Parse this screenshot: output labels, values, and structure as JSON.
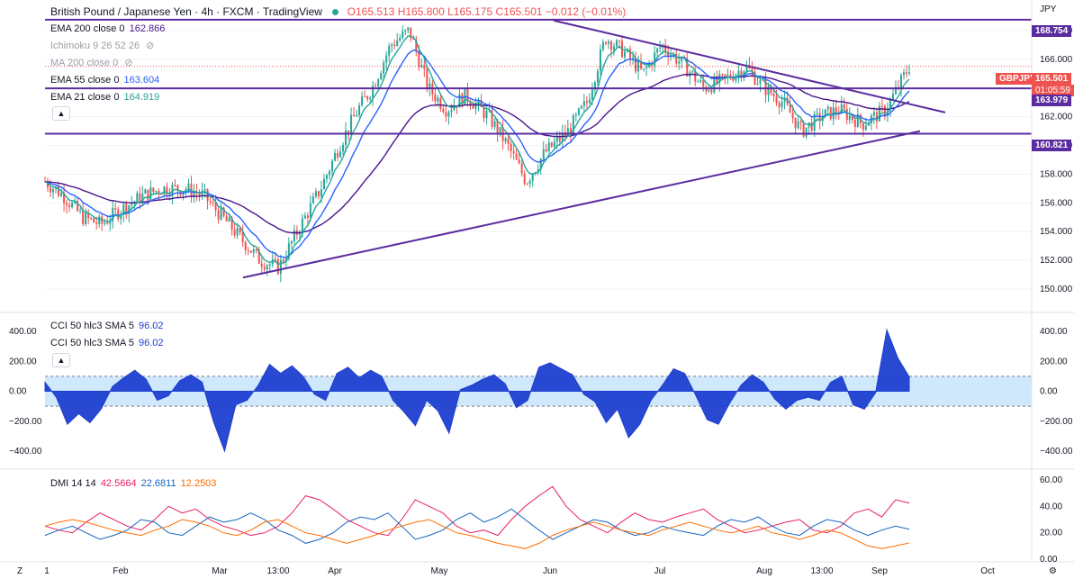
{
  "header": {
    "title": "British Pound / Japanese Yen · 4h · FXCM · TradingView",
    "ohlc": {
      "o": "O165.513",
      "h": "H165.800",
      "l": "L165.175",
      "c": "C165.501",
      "chg": "−0.012 (−0.01%)"
    }
  },
  "currency": "JPY",
  "legend": {
    "ema200": {
      "label": "EMA 200 close 0",
      "value": "162.866"
    },
    "ichimoku": {
      "label": "Ichimoku 9 26 52 26"
    },
    "ma200": {
      "label": "MA 200 close 0"
    },
    "ema55": {
      "label": "EMA 55 close 0",
      "value": "163.604"
    },
    "ema21": {
      "label": "EMA 21 close 0",
      "value": "164.919"
    },
    "cci1": {
      "label": "CCI 50 hlc3 SMA 5",
      "value": "96.02"
    },
    "cci2": {
      "label": "CCI 50 hlc3 SMA 5",
      "value": "96.02"
    },
    "dmi": {
      "label": "DMI 14 14",
      "v1": "42.5664",
      "v2": "22.6811",
      "v3": "12.2503"
    }
  },
  "price_tags": {
    "r1": "168.754",
    "symbol": "GBPJPY",
    "last": "165.501",
    "countdown": "01:05:59",
    "r2": "163.979",
    "r3": "160.821"
  },
  "colors": {
    "up": "#26a69a",
    "down": "#ef5350",
    "line": "#5b2c9f",
    "ema200": "#4a148c",
    "ema55": "#2962ff",
    "ema21": "#26a69a",
    "cci": "#1e3fd0",
    "band": "#cfe8fb",
    "dmi_plus": "#e91e63",
    "dmi_minus": "#1565c0",
    "adx": "#ff6d00"
  },
  "x_axis": [
    "1",
    "Feb",
    "Mar",
    "13:00",
    "Apr",
    "May",
    "Jun",
    "Jul",
    "Aug",
    "13:00",
    "Sep",
    "Oct"
  ],
  "chart_data": [
    {
      "type": "line",
      "title": "GBPJPY 4h",
      "ylim": [
        149,
        169.5
      ],
      "y_ticks": [
        150,
        152,
        154,
        156,
        158,
        160,
        162,
        164,
        166,
        168
      ],
      "close_path": {
        "x": [
          0,
          4,
          8,
          12,
          16,
          21,
          25,
          30,
          34,
          38,
          42,
          46,
          50,
          54,
          59,
          63,
          67,
          70,
          74,
          78,
          82,
          86,
          90,
          95,
          99,
          103,
          107,
          112,
          116,
          120,
          124,
          128,
          132,
          137,
          141,
          145,
          150,
          154,
          158,
          162,
          166,
          170,
          175,
          180,
          185
        ],
        "y": [
          157.5,
          156.5,
          155.0,
          154.5,
          155.5,
          156.5,
          157.0,
          157.0,
          156.5,
          155.0,
          153.5,
          152.0,
          151.5,
          154.0,
          157.0,
          160.0,
          162.5,
          164.0,
          167.0,
          168.0,
          164.0,
          162.5,
          163.5,
          162.0,
          160.0,
          157.5,
          159.5,
          161.0,
          163.0,
          167.5,
          166.5,
          165.0,
          167.0,
          165.5,
          164.0,
          164.5,
          165.5,
          164.0,
          163.0,
          161.0,
          162.0,
          162.5,
          161.5,
          162.5,
          165.5
        ]
      },
      "levels": [
        168.754,
        163.979,
        160.821
      ],
      "trendlines": [
        {
          "from": [
            "May 27",
            168.7
          ],
          "to": [
            "Sep 20",
            162.3
          ]
        },
        {
          "from": [
            "Mar 1",
            150.8
          ],
          "to": [
            "Sep 15",
            161.0
          ]
        }
      ],
      "series": [
        {
          "name": "EMA 200 close 0",
          "last": 162.866
        },
        {
          "name": "EMA 55 close 0",
          "last": 163.604
        },
        {
          "name": "EMA 21 close 0",
          "last": 164.919
        }
      ]
    },
    {
      "type": "area",
      "title": "CCI 50 hlc3 SMA 5",
      "ylim": [
        -470,
        450
      ],
      "y_ticks": [
        -400,
        -200,
        0,
        200,
        400
      ],
      "band": [
        -100,
        100
      ],
      "values": [
        60,
        -40,
        -220,
        -150,
        -210,
        -120,
        30,
        90,
        140,
        80,
        -60,
        -30,
        70,
        110,
        60,
        -200,
        -400,
        -90,
        -60,
        40,
        180,
        120,
        170,
        100,
        -20,
        -60,
        120,
        160,
        90,
        140,
        100,
        -60,
        -140,
        -230,
        -60,
        -130,
        -280,
        10,
        40,
        80,
        110,
        50,
        -110,
        -60,
        160,
        190,
        150,
        110,
        -20,
        -70,
        -210,
        -120,
        -310,
        -220,
        -60,
        40,
        150,
        120,
        -30,
        -190,
        -220,
        -80,
        40,
        110,
        60,
        -50,
        -120,
        -60,
        -40,
        -60,
        60,
        100,
        -90,
        -120,
        -10,
        410,
        220,
        96
      ]
    },
    {
      "type": "line",
      "title": "DMI 14 14",
      "ylim": [
        0,
        65
      ],
      "y_ticks": [
        0,
        20,
        40,
        60
      ],
      "series": [
        {
          "name": "+DI",
          "values": [
            25,
            22,
            20,
            28,
            35,
            30,
            25,
            22,
            30,
            40,
            35,
            38,
            30,
            25,
            22,
            18,
            20,
            25,
            35,
            48,
            45,
            38,
            30,
            25,
            20,
            18,
            30,
            45,
            40,
            35,
            25,
            20,
            22,
            18,
            30,
            40,
            48,
            55,
            40,
            30,
            25,
            20,
            28,
            35,
            30,
            28,
            32,
            35,
            38,
            30,
            25,
            20,
            22,
            25,
            28,
            30,
            22,
            20,
            25,
            35,
            38,
            32,
            45,
            42.5664
          ]
        },
        {
          "name": "-DI",
          "values": [
            18,
            22,
            25,
            20,
            15,
            18,
            22,
            30,
            28,
            20,
            18,
            25,
            32,
            28,
            30,
            35,
            30,
            22,
            18,
            12,
            15,
            20,
            28,
            32,
            30,
            35,
            25,
            15,
            18,
            22,
            30,
            35,
            28,
            32,
            38,
            30,
            22,
            15,
            20,
            25,
            30,
            28,
            22,
            18,
            20,
            25,
            22,
            20,
            18,
            25,
            30,
            28,
            32,
            25,
            20,
            18,
            25,
            30,
            28,
            22,
            18,
            22,
            25,
            22.6811
          ]
        },
        {
          "name": "ADX",
          "values": [
            25,
            28,
            30,
            28,
            25,
            22,
            20,
            18,
            22,
            25,
            30,
            28,
            25,
            20,
            18,
            22,
            28,
            30,
            25,
            20,
            18,
            15,
            12,
            15,
            18,
            22,
            25,
            28,
            30,
            25,
            20,
            18,
            15,
            12,
            10,
            8,
            12,
            18,
            22,
            25,
            28,
            25,
            22,
            20,
            18,
            22,
            25,
            28,
            25,
            22,
            20,
            22,
            25,
            20,
            18,
            15,
            18,
            22,
            20,
            15,
            10,
            8,
            10,
            12.2503
          ]
        }
      ]
    }
  ]
}
